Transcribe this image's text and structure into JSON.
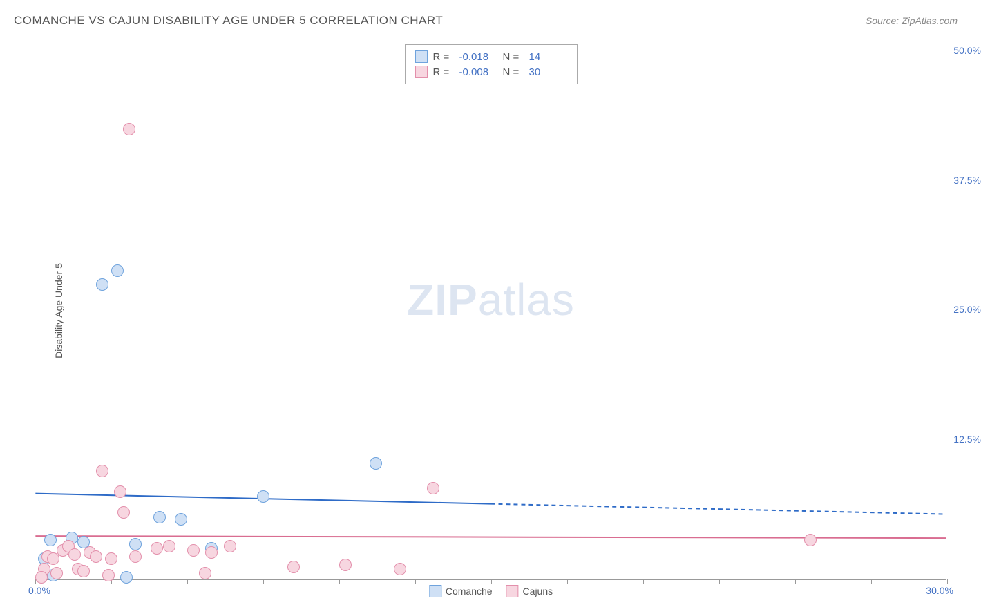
{
  "header": {
    "title": "COMANCHE VS CAJUN DISABILITY AGE UNDER 5 CORRELATION CHART",
    "source": "Source: ZipAtlas.com"
  },
  "watermark": {
    "bold": "ZIP",
    "rest": "atlas"
  },
  "chart": {
    "type": "scatter",
    "background_color": "#ffffff",
    "grid_color": "#dddddd",
    "axis_color": "#999999",
    "label_color": "#555555",
    "tick_label_color": "#4472c4",
    "y_axis_title": "Disability Age Under 5",
    "xlim": [
      0,
      30
    ],
    "ylim": [
      0,
      52
    ],
    "x_start_label": "0.0%",
    "x_end_label": "30.0%",
    "x_tick_positions": [
      0,
      2.5,
      5,
      7.5,
      10,
      12.5,
      15,
      17.5,
      20,
      22.5,
      25,
      27.5,
      30
    ],
    "y_ticks": [
      {
        "value": 12.5,
        "label": "12.5%"
      },
      {
        "value": 25.0,
        "label": "25.0%"
      },
      {
        "value": 37.5,
        "label": "37.5%"
      },
      {
        "value": 50.0,
        "label": "50.0%"
      }
    ],
    "marker_radius": 9,
    "marker_stroke_width": 1.5,
    "series": [
      {
        "name": "Comanche",
        "fill": "#cfe0f5",
        "stroke": "#6fa3dd",
        "trend_color": "#2e6bc7",
        "trend_width": 2,
        "R": "-0.018",
        "N": "14",
        "trend_y_at_x0": 8.3,
        "trend_y_at_xmax": 6.3,
        "data_x_max": 15.0,
        "points": [
          [
            0.3,
            2.0
          ],
          [
            0.5,
            3.8
          ],
          [
            0.6,
            0.4
          ],
          [
            1.2,
            4.0
          ],
          [
            1.6,
            3.6
          ],
          [
            2.2,
            28.5
          ],
          [
            2.7,
            29.8
          ],
          [
            3.0,
            0.2
          ],
          [
            3.3,
            3.4
          ],
          [
            4.1,
            6.0
          ],
          [
            4.8,
            5.8
          ],
          [
            5.8,
            3.0
          ],
          [
            7.5,
            8.0
          ],
          [
            11.2,
            11.2
          ]
        ]
      },
      {
        "name": "Cajuns",
        "fill": "#f7d6e0",
        "stroke": "#e38fab",
        "trend_color": "#d96d91",
        "trend_width": 2,
        "R": "-0.008",
        "N": "30",
        "trend_y_at_x0": 4.2,
        "trend_y_at_xmax": 4.0,
        "data_x_max": 30.0,
        "points": [
          [
            0.3,
            1.0
          ],
          [
            0.4,
            2.2
          ],
          [
            0.6,
            2.0
          ],
          [
            0.7,
            0.6
          ],
          [
            0.9,
            2.8
          ],
          [
            1.1,
            3.2
          ],
          [
            1.3,
            2.4
          ],
          [
            1.4,
            1.0
          ],
          [
            1.6,
            0.8
          ],
          [
            1.8,
            2.6
          ],
          [
            2.0,
            2.2
          ],
          [
            2.2,
            10.5
          ],
          [
            2.4,
            0.4
          ],
          [
            2.5,
            2.0
          ],
          [
            2.8,
            8.5
          ],
          [
            2.9,
            6.5
          ],
          [
            3.1,
            43.5
          ],
          [
            3.3,
            2.2
          ],
          [
            4.0,
            3.0
          ],
          [
            4.4,
            3.2
          ],
          [
            5.2,
            2.8
          ],
          [
            5.6,
            0.6
          ],
          [
            5.8,
            2.6
          ],
          [
            6.4,
            3.2
          ],
          [
            8.5,
            1.2
          ],
          [
            10.2,
            1.4
          ],
          [
            12.0,
            1.0
          ],
          [
            13.1,
            8.8
          ],
          [
            25.5,
            3.8
          ],
          [
            0.2,
            0.2
          ]
        ]
      }
    ],
    "legend_top": {
      "border_color": "#aaaaaa"
    },
    "legend_bottom_items": [
      {
        "label": "Comanche",
        "fill": "#cfe0f5",
        "stroke": "#6fa3dd"
      },
      {
        "label": "Cajuns",
        "fill": "#f7d6e0",
        "stroke": "#e38fab"
      }
    ]
  }
}
